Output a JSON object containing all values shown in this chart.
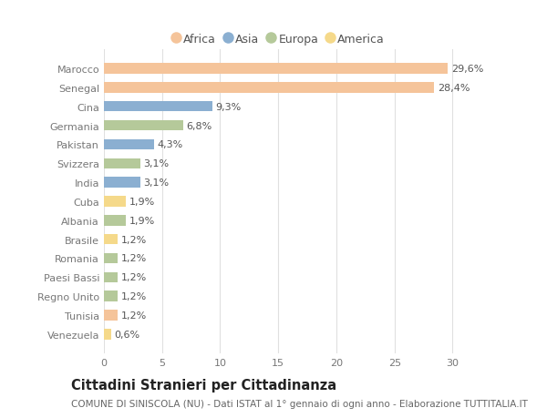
{
  "countries": [
    "Marocco",
    "Senegal",
    "Cina",
    "Germania",
    "Pakistan",
    "Svizzera",
    "India",
    "Cuba",
    "Albania",
    "Brasile",
    "Romania",
    "Paesi Bassi",
    "Regno Unito",
    "Tunisia",
    "Venezuela"
  ],
  "values": [
    29.6,
    28.4,
    9.3,
    6.8,
    4.3,
    3.1,
    3.1,
    1.9,
    1.9,
    1.2,
    1.2,
    1.2,
    1.2,
    1.2,
    0.6
  ],
  "continents": [
    "Africa",
    "Africa",
    "Asia",
    "Europa",
    "Asia",
    "Europa",
    "Asia",
    "America",
    "Europa",
    "America",
    "Europa",
    "Europa",
    "Europa",
    "Africa",
    "America"
  ],
  "colors": {
    "Africa": "#F5C49A",
    "Asia": "#8BAFD1",
    "Europa": "#B5C99A",
    "America": "#F5D98A"
  },
  "xlim": [
    0,
    32
  ],
  "xticks": [
    0,
    5,
    10,
    15,
    20,
    25,
    30
  ],
  "title": "Cittadini Stranieri per Cittadinanza",
  "subtitle": "COMUNE DI SINISCOLA (NU) - Dati ISTAT al 1° gennaio di ogni anno - Elaborazione TUTTITALIA.IT",
  "bg_color": "#ffffff",
  "grid_color": "#e0e0e0",
  "bar_height": 0.55,
  "label_fontsize": 8.0,
  "tick_fontsize": 8.0,
  "title_fontsize": 10.5,
  "subtitle_fontsize": 7.5,
  "legend_fontsize": 9.0,
  "legend_order": [
    "Africa",
    "Asia",
    "Europa",
    "America"
  ]
}
